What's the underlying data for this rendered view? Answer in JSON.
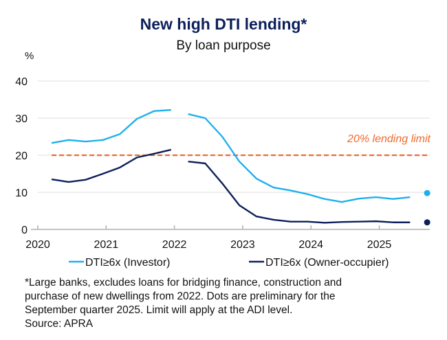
{
  "chart_data": {
    "type": "line",
    "title": "New high DTI lending*",
    "subtitle": "By loan purpose",
    "ylabel": "%",
    "ylim": [
      0,
      40
    ],
    "yticks": [
      0,
      10,
      20,
      30,
      40
    ],
    "xticks": [
      "2020",
      "2021",
      "2022",
      "2023",
      "2024",
      "2025"
    ],
    "grid": true,
    "legend_position": "bottom",
    "x": [
      "2020-03",
      "2020-06",
      "2020-09",
      "2020-12",
      "2021-03",
      "2021-06",
      "2021-09",
      "2021-12",
      "2022-03",
      "2022-06",
      "2022-09",
      "2022-12",
      "2023-03",
      "2023-06",
      "2023-09",
      "2023-12",
      "2024-03",
      "2024-06",
      "2024-09",
      "2024-12",
      "2025-03",
      "2025-06"
    ],
    "series": [
      {
        "name": "DTI≥6x (Investor)",
        "color": "#1eb0ec",
        "values": [
          23.3,
          24.1,
          23.7,
          24.1,
          25.7,
          29.8,
          31.9,
          32.2,
          31.1,
          30.0,
          25.0,
          18.3,
          13.7,
          11.3,
          10.5,
          9.5,
          8.2,
          7.4,
          8.3,
          8.7,
          8.2,
          8.7
        ],
        "preliminary": {
          "x": "2025-09",
          "value": 9.8
        }
      },
      {
        "name": "DTI≥6x (Owner-occupier)",
        "color": "#0c1f5b",
        "values": [
          13.5,
          12.8,
          13.4,
          15.0,
          16.7,
          19.4,
          20.4,
          21.5,
          18.3,
          17.8,
          12.4,
          6.5,
          3.5,
          2.6,
          2.1,
          2.1,
          1.8,
          2.0,
          2.1,
          2.2,
          1.9,
          1.9
        ],
        "preliminary": {
          "x": "2025-09",
          "value": 1.9
        }
      }
    ],
    "break_after": "2021-12",
    "reference_line": {
      "value": 20,
      "label": "20% lending limit",
      "color": "#f06a2a"
    },
    "footnote": [
      "*Large banks, excludes loans for bridging finance, construction and",
      "purchase of new dwellings from 2022. Dots are preliminary for the",
      "September quarter 2025. Limit will apply at the ADI level.",
      "Source: APRA"
    ]
  }
}
